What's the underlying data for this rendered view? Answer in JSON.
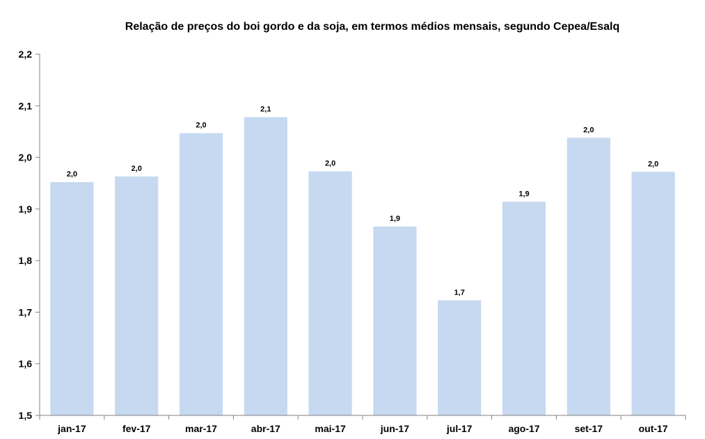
{
  "chart_data": {
    "type": "bar",
    "title": "Relação de preços do boi gordo e da soja, em termos médios mensais, segundo Cepea/Esalq",
    "xlabel": "",
    "ylabel": "",
    "categories": [
      "jan-17",
      "fev-17",
      "mar-17",
      "abr-17",
      "mai-17",
      "jun-17",
      "jul-17",
      "ago-17",
      "set-17",
      "out-17"
    ],
    "values": [
      1.952,
      1.963,
      2.047,
      2.078,
      1.973,
      1.866,
      1.723,
      1.914,
      2.038,
      1.972
    ],
    "data_labels": [
      "2,0",
      "2,0",
      "2,0",
      "2,1",
      "2,0",
      "1,9",
      "1,7",
      "1,9",
      "2,0",
      "2,0"
    ],
    "ylim": [
      1.5,
      2.2
    ],
    "yticks": [
      1.5,
      1.6,
      1.7,
      1.8,
      1.9,
      2.0,
      2.1,
      2.2
    ],
    "ytick_labels": [
      "1,5",
      "1,6",
      "1,7",
      "1,8",
      "1,9",
      "2,0",
      "2,1",
      "2,2"
    ],
    "grid": false,
    "legend": "none",
    "bar_color": "#c6d9f1",
    "axis_color": "#808080"
  }
}
